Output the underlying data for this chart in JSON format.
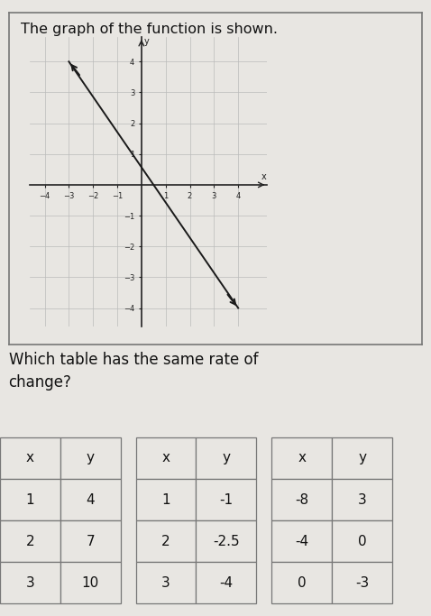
{
  "title_text": "The graph of the function is shown.",
  "question_text": "Which table has the same rate of\nchange?",
  "background_color": "#e8e6e2",
  "graph_bg_color": "#e8e6e2",
  "line_color": "#1a1a1a",
  "grid_color": "#bbbbbb",
  "axis_color": "#222222",
  "line_x": [
    -3.0,
    4.0
  ],
  "line_y": [
    4.0,
    -4.0
  ],
  "xlim": [
    -4.6,
    5.2
  ],
  "ylim": [
    -4.6,
    4.8
  ],
  "xticks": [
    -4,
    -3,
    -2,
    -1,
    1,
    2,
    3,
    4
  ],
  "yticks": [
    -4,
    -3,
    -2,
    -1,
    1,
    2,
    3,
    4
  ],
  "table1": {
    "headers": [
      "x",
      "y"
    ],
    "rows": [
      [
        "1",
        "4"
      ],
      [
        "2",
        "7"
      ],
      [
        "3",
        "10"
      ]
    ]
  },
  "table2": {
    "headers": [
      "x",
      "y"
    ],
    "rows": [
      [
        "1",
        "-1"
      ],
      [
        "2",
        "-2.5"
      ],
      [
        "3",
        "-4"
      ]
    ]
  },
  "table3": {
    "headers": [
      "x",
      "y"
    ],
    "rows": [
      [
        "-8",
        "3"
      ],
      [
        "-4",
        "0"
      ],
      [
        "0",
        "-3"
      ]
    ]
  },
  "title_fontsize": 11.5,
  "question_fontsize": 12,
  "table_fontsize": 11,
  "border_color": "#777777"
}
